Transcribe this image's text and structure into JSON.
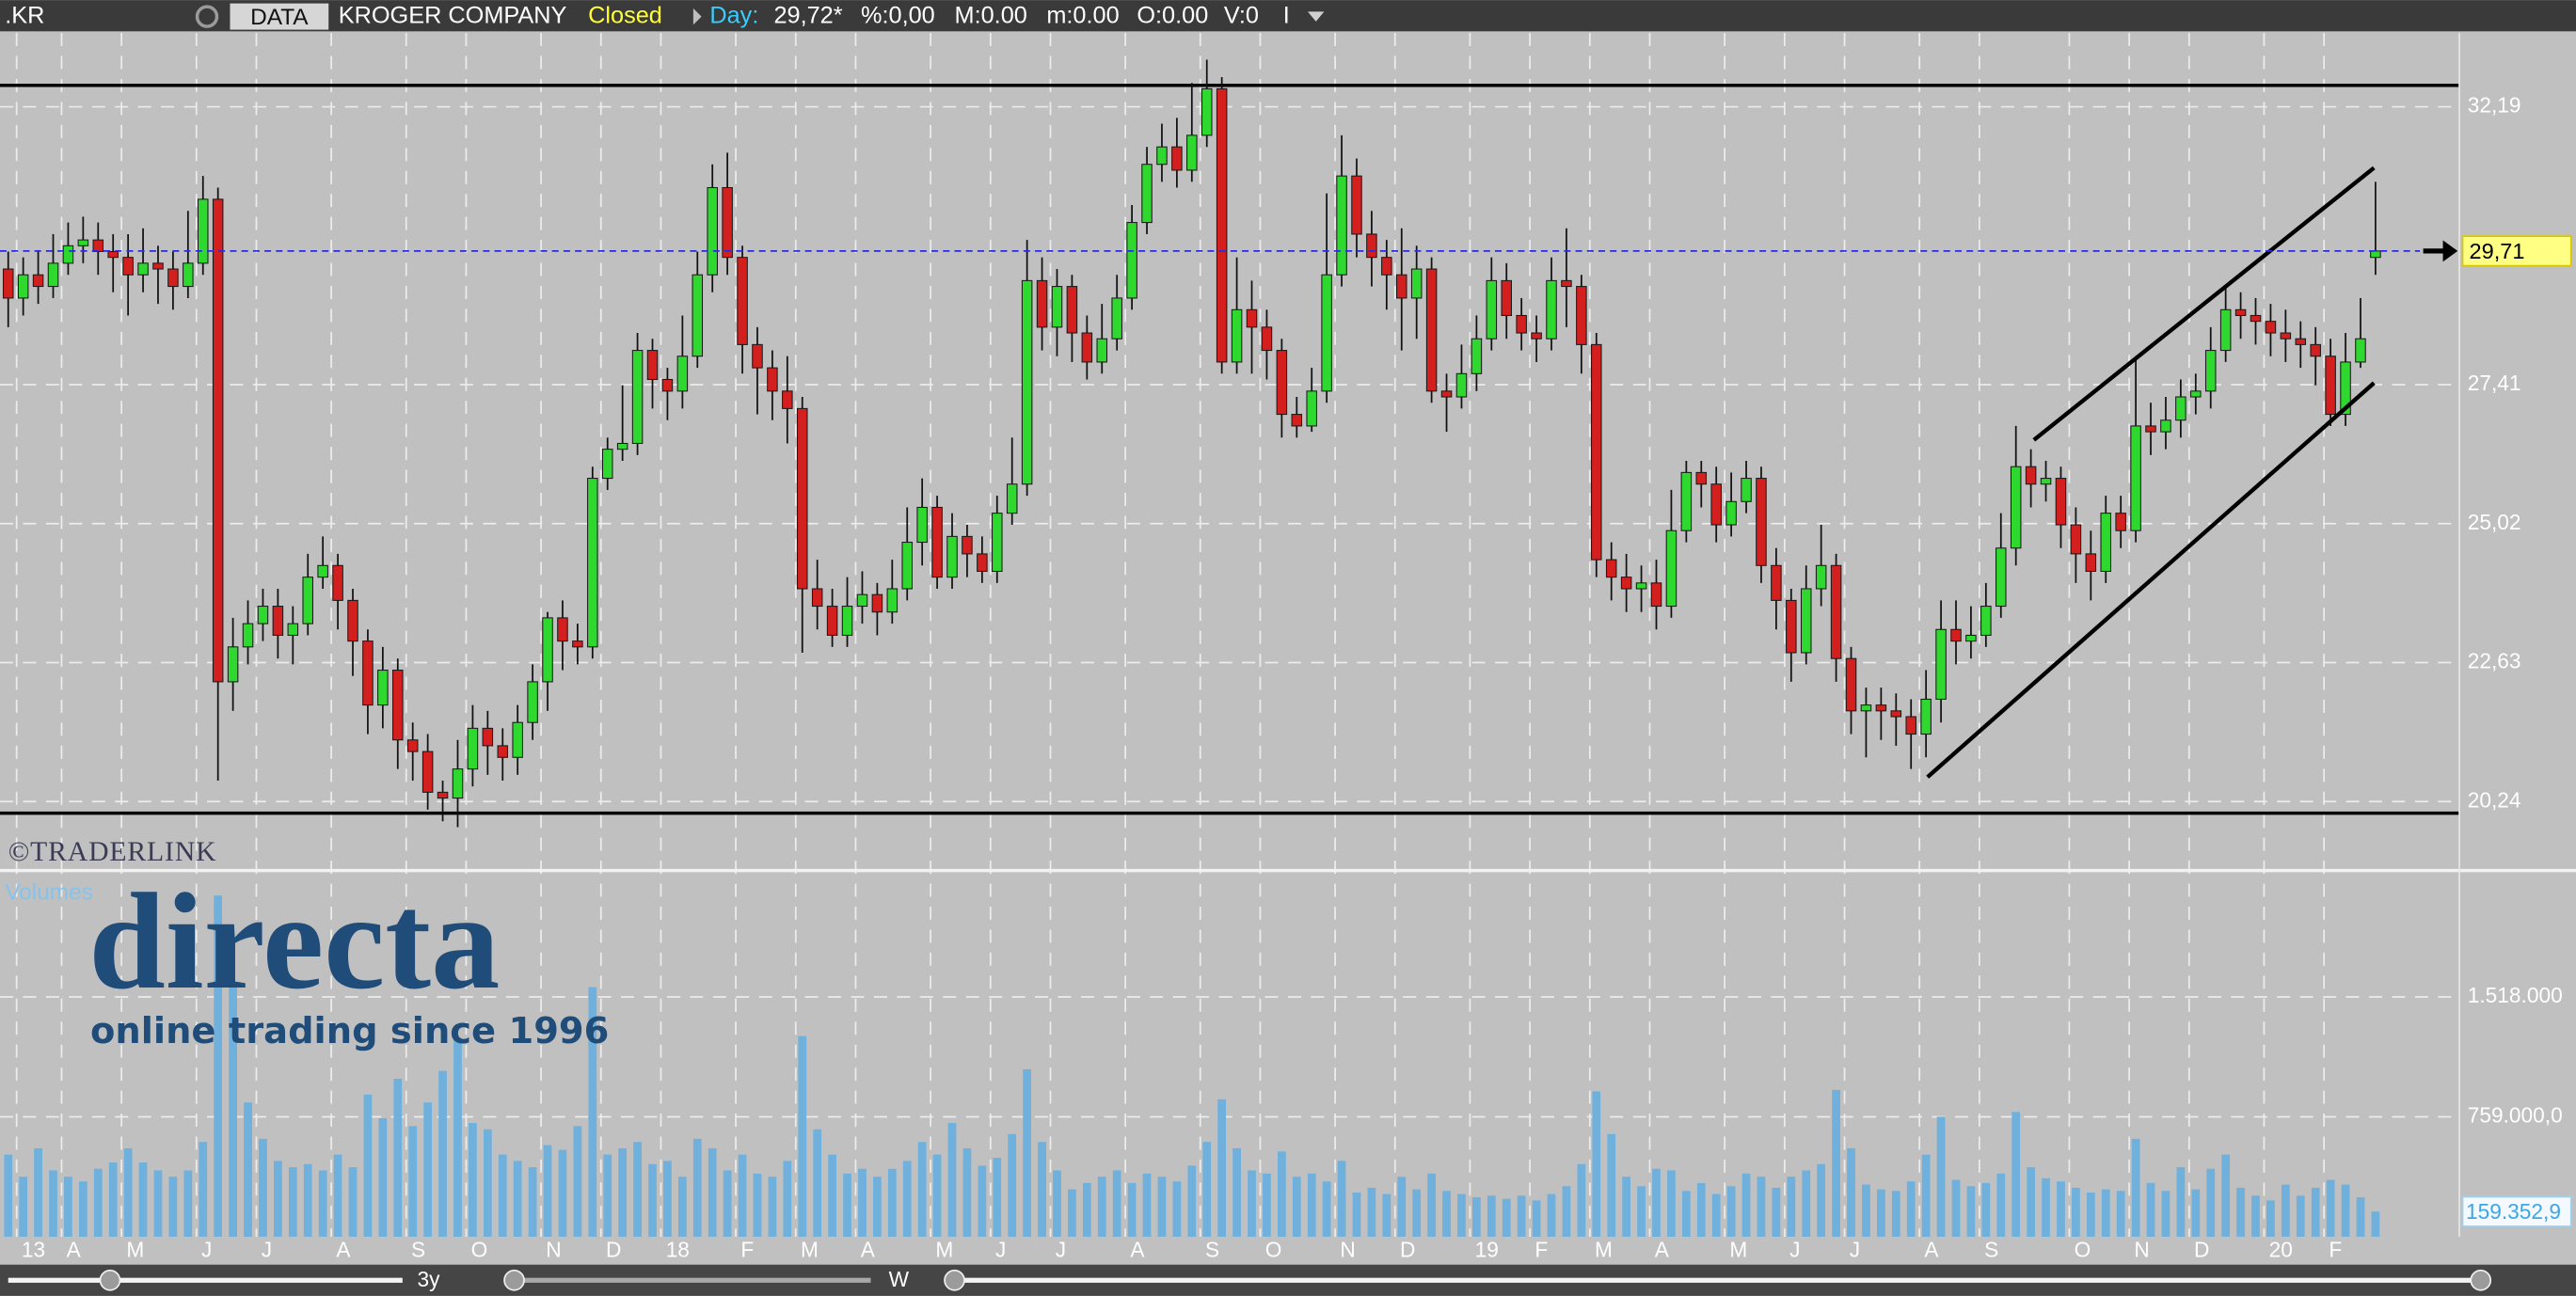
{
  "header": {
    "symbol": ".KR",
    "data_button": "DATA",
    "company": "KROGER COMPANY",
    "status": "Closed",
    "day_label": "Day:",
    "day_value": "29,72*",
    "change": "%:0,00",
    "max": "M:0.00",
    "min": "m:0.00",
    "open": "O:0.00",
    "volume": "V:0",
    "interval": "I"
  },
  "watermark": {
    "provider": "©TRADERLINK",
    "brand": "directa",
    "tagline": "online trading since 1996"
  },
  "footer": {
    "range": "3y",
    "period": "W"
  },
  "chart_data": [
    {
      "type": "candlestick",
      "categories": [
        null,
        "13",
        null,
        null,
        "A",
        null,
        null,
        null,
        "M",
        null,
        null,
        null,
        null,
        "J",
        null,
        null,
        null,
        "J",
        null,
        null,
        null,
        null,
        "A",
        null,
        null,
        null,
        null,
        "S",
        null,
        null,
        null,
        "O",
        null,
        null,
        null,
        null,
        "N",
        null,
        null,
        null,
        "D",
        null,
        null,
        null,
        "18",
        null,
        null,
        null,
        null,
        "F",
        null,
        null,
        null,
        "M",
        null,
        null,
        null,
        "A",
        null,
        null,
        null,
        null,
        "M",
        null,
        null,
        null,
        "J",
        null,
        null,
        null,
        "J",
        null,
        null,
        null,
        null,
        "A",
        null,
        null,
        null,
        null,
        "S",
        null,
        null,
        null,
        "O",
        null,
        null,
        null,
        null,
        "N",
        null,
        null,
        null,
        "D",
        null,
        null,
        null,
        null,
        "19",
        null,
        null,
        null,
        "F",
        null,
        null,
        null,
        "M",
        null,
        null,
        null,
        "A",
        null,
        null,
        null,
        null,
        "M",
        null,
        null,
        null,
        "J",
        null,
        null,
        null,
        "J",
        null,
        null,
        null,
        null,
        "A",
        null,
        null,
        null,
        "S",
        null,
        null,
        null,
        null,
        null,
        "O",
        null,
        null,
        null,
        "N",
        null,
        null,
        null,
        "D",
        null,
        null,
        null,
        null,
        "20",
        null,
        null,
        null,
        "F",
        null,
        null,
        null
      ],
      "open": [
        29.4,
        28.9,
        29.3,
        29.1,
        29.5,
        29.8,
        29.9,
        29.7,
        29.6,
        29.3,
        29.5,
        29.4,
        29.1,
        29.5,
        30.6,
        22.3,
        22.9,
        23.3,
        23.6,
        23.1,
        23.3,
        24.1,
        24.3,
        23.7,
        23.0,
        21.9,
        22.5,
        21.3,
        21.1,
        20.4,
        20.3,
        20.8,
        21.5,
        21.2,
        21.0,
        21.6,
        22.3,
        23.4,
        23.0,
        22.9,
        25.8,
        26.3,
        26.4,
        28.0,
        27.5,
        27.3,
        27.9,
        29.3,
        30.8,
        29.6,
        28.1,
        27.7,
        27.3,
        27.0,
        23.9,
        23.6,
        23.1,
        23.6,
        23.8,
        23.5,
        23.9,
        24.7,
        25.3,
        24.1,
        24.8,
        24.5,
        24.2,
        25.2,
        25.7,
        29.2,
        28.4,
        29.1,
        28.3,
        27.8,
        28.2,
        28.9,
        30.2,
        31.2,
        31.5,
        31.1,
        31.7,
        32.5,
        27.8,
        28.7,
        28.4,
        28.0,
        26.9,
        26.7,
        27.3,
        29.3,
        31.0,
        30.0,
        29.6,
        29.3,
        28.9,
        29.4,
        27.3,
        27.2,
        27.6,
        28.2,
        29.2,
        28.6,
        28.3,
        28.2,
        29.2,
        29.1,
        28.1,
        24.4,
        24.1,
        23.9,
        24.0,
        23.6,
        24.9,
        25.9,
        25.7,
        25.0,
        25.4,
        25.8,
        24.3,
        23.7,
        22.8,
        23.9,
        24.3,
        22.7,
        21.8,
        21.9,
        21.8,
        21.7,
        21.4,
        22.0,
        23.2,
        23.0,
        23.1,
        23.6,
        24.6,
        26.0,
        25.7,
        25.8,
        25.0,
        24.5,
        24.2,
        25.2,
        24.9,
        26.7,
        26.6,
        26.8,
        27.2,
        27.3,
        28.0,
        28.7,
        28.6,
        28.5,
        28.3,
        28.2,
        28.1,
        27.9,
        26.9,
        27.8,
        29.6
      ],
      "high": [
        29.7,
        29.6,
        29.7,
        30.0,
        30.2,
        30.3,
        30.2,
        30.0,
        30.0,
        30.1,
        29.8,
        29.7,
        30.4,
        31.0,
        30.8,
        23.4,
        23.7,
        23.9,
        23.9,
        23.6,
        24.5,
        24.8,
        24.5,
        23.9,
        23.2,
        22.9,
        22.7,
        21.6,
        21.4,
        20.6,
        21.3,
        21.9,
        21.8,
        21.5,
        21.9,
        22.6,
        23.5,
        23.7,
        23.3,
        26.0,
        26.5,
        27.4,
        28.3,
        28.2,
        27.7,
        28.6,
        29.7,
        31.2,
        31.4,
        29.8,
        28.4,
        28.0,
        27.9,
        27.2,
        24.4,
        23.9,
        24.1,
        24.2,
        24.0,
        24.4,
        25.3,
        25.8,
        25.5,
        25.2,
        25.0,
        24.8,
        25.5,
        26.5,
        29.9,
        29.6,
        29.4,
        29.3,
        28.6,
        28.8,
        29.3,
        30.5,
        31.5,
        31.9,
        32.0,
        32.6,
        33.0,
        32.7,
        29.6,
        29.2,
        28.7,
        28.2,
        27.2,
        27.7,
        30.7,
        31.7,
        31.3,
        30.4,
        29.9,
        30.1,
        29.8,
        29.6,
        27.6,
        28.1,
        28.6,
        29.6,
        29.5,
        28.9,
        28.6,
        29.6,
        30.1,
        29.3,
        28.3,
        24.7,
        24.5,
        24.3,
        24.4,
        25.6,
        26.1,
        26.1,
        26.0,
        25.9,
        26.1,
        26.0,
        24.6,
        23.9,
        24.3,
        25.0,
        24.5,
        22.9,
        22.2,
        22.2,
        22.1,
        22.0,
        22.5,
        23.7,
        23.7,
        23.6,
        24.0,
        25.2,
        26.7,
        26.3,
        26.1,
        26.0,
        25.3,
        24.9,
        25.5,
        25.5,
        27.9,
        27.1,
        27.2,
        27.5,
        27.6,
        28.4,
        29.1,
        29.0,
        28.9,
        28.8,
        28.7,
        28.5,
        28.4,
        28.2,
        28.3,
        28.9,
        30.9
      ],
      "low": [
        28.4,
        28.6,
        28.8,
        28.9,
        29.3,
        29.5,
        29.3,
        29.0,
        28.6,
        29.0,
        28.8,
        28.7,
        28.9,
        29.3,
        20.6,
        21.8,
        22.6,
        23.0,
        22.7,
        22.6,
        23.1,
        23.9,
        23.2,
        22.4,
        21.4,
        21.5,
        20.8,
        20.6,
        20.1,
        19.9,
        19.8,
        20.5,
        20.7,
        20.6,
        20.7,
        21.3,
        21.8,
        22.5,
        22.6,
        22.7,
        25.6,
        26.1,
        26.2,
        27.0,
        26.8,
        27.0,
        27.7,
        29.0,
        29.3,
        27.6,
        26.9,
        26.8,
        26.4,
        22.8,
        23.2,
        22.9,
        22.9,
        23.3,
        23.1,
        23.3,
        23.7,
        24.3,
        23.9,
        23.9,
        24.1,
        24.0,
        24.0,
        25.0,
        25.5,
        28.0,
        27.9,
        27.8,
        27.5,
        27.6,
        28.0,
        28.7,
        30.0,
        30.9,
        30.8,
        30.9,
        31.5,
        27.6,
        27.6,
        27.6,
        27.5,
        26.5,
        26.5,
        26.6,
        27.1,
        29.1,
        29.6,
        29.1,
        28.7,
        28.0,
        28.2,
        27.1,
        26.6,
        27.0,
        27.3,
        28.0,
        28.2,
        28.0,
        27.8,
        28.0,
        28.4,
        27.6,
        24.1,
        23.7,
        23.5,
        23.5,
        23.2,
        23.4,
        24.7,
        25.3,
        24.7,
        24.8,
        25.2,
        24.0,
        23.2,
        22.3,
        22.6,
        23.6,
        22.3,
        21.4,
        21.0,
        21.3,
        21.2,
        20.8,
        21.0,
        21.6,
        22.6,
        22.7,
        22.9,
        23.4,
        24.3,
        25.3,
        25.4,
        24.6,
        24.0,
        23.7,
        24.0,
        24.6,
        24.7,
        26.2,
        26.3,
        26.5,
        26.9,
        27.0,
        27.8,
        28.2,
        28.1,
        27.9,
        27.8,
        27.7,
        27.4,
        26.7,
        26.7,
        27.7,
        29.3
      ],
      "close": [
        28.9,
        29.3,
        29.1,
        29.5,
        29.8,
        29.9,
        29.7,
        29.6,
        29.3,
        29.5,
        29.4,
        29.1,
        29.5,
        30.6,
        22.3,
        22.9,
        23.3,
        23.6,
        23.1,
        23.3,
        24.1,
        24.3,
        23.7,
        23.0,
        21.9,
        22.5,
        21.3,
        21.1,
        20.4,
        20.3,
        20.8,
        21.5,
        21.2,
        21.0,
        21.6,
        22.3,
        23.4,
        23.0,
        22.9,
        25.8,
        26.3,
        26.4,
        28.0,
        27.5,
        27.3,
        27.9,
        29.3,
        30.8,
        29.6,
        28.1,
        27.7,
        27.3,
        27.0,
        23.9,
        23.6,
        23.1,
        23.6,
        23.8,
        23.5,
        23.9,
        24.7,
        25.3,
        24.1,
        24.8,
        24.5,
        24.2,
        25.2,
        25.7,
        29.2,
        28.4,
        29.1,
        28.3,
        27.8,
        28.2,
        28.9,
        30.2,
        31.2,
        31.5,
        31.1,
        31.7,
        32.5,
        27.8,
        28.7,
        28.4,
        28.0,
        26.9,
        26.7,
        27.3,
        29.3,
        31.0,
        30.0,
        29.6,
        29.3,
        28.9,
        29.4,
        27.3,
        27.2,
        27.6,
        28.2,
        29.2,
        28.6,
        28.3,
        28.2,
        29.2,
        29.1,
        28.1,
        24.4,
        24.1,
        23.9,
        24.0,
        23.6,
        24.9,
        25.9,
        25.7,
        25.0,
        25.4,
        25.8,
        24.3,
        23.7,
        22.8,
        23.9,
        24.3,
        22.7,
        21.8,
        21.9,
        21.8,
        21.7,
        21.4,
        22.0,
        23.2,
        23.0,
        23.1,
        23.6,
        24.6,
        26.0,
        25.7,
        25.8,
        25.0,
        24.5,
        24.2,
        25.2,
        24.9,
        26.7,
        26.6,
        26.8,
        27.2,
        27.3,
        28.0,
        28.7,
        28.6,
        28.5,
        28.3,
        28.2,
        28.1,
        27.9,
        26.9,
        27.8,
        28.2,
        29.71
      ],
      "last_label": "29,71",
      "up_color": "#2ed82e",
      "down_color": "#d41f1f",
      "last_line_color": "#2a2ae0",
      "ylim": [
        19.11,
        33.46
      ],
      "yticks": [
        {
          "value": 32.19,
          "label": "32,19"
        },
        {
          "value": 27.41,
          "label": "27,41"
        },
        {
          "value": 25.02,
          "label": "25,02"
        },
        {
          "value": 22.63,
          "label": "22,63"
        },
        {
          "value": 20.24,
          "label": "20,24"
        }
      ],
      "grid": true,
      "reference_lines": [
        32.56,
        20.04
      ],
      "trendlines": [
        {
          "x": [
            135.2,
            157.9
          ],
          "y": [
            26.46,
            31.14
          ]
        },
        {
          "x": [
            128.1,
            157.9
          ],
          "y": [
            20.66,
            27.44
          ]
        }
      ]
    },
    {
      "type": "bar",
      "title": "Volumes",
      "color": "#6fb0dc",
      "values": [
        520000,
        380000,
        560000,
        420000,
        380000,
        350000,
        430000,
        470000,
        560000,
        470000,
        420000,
        380000,
        420000,
        600000,
        2160000,
        1590000,
        850000,
        620000,
        480000,
        440000,
        460000,
        420000,
        520000,
        440000,
        900000,
        750000,
        1000000,
        700000,
        850000,
        1050000,
        1260000,
        720000,
        680000,
        520000,
        480000,
        440000,
        580000,
        550000,
        700000,
        1580000,
        520000,
        560000,
        600000,
        460000,
        480000,
        380000,
        620000,
        560000,
        420000,
        520000,
        400000,
        380000,
        480000,
        1270000,
        680000,
        520000,
        400000,
        430000,
        380000,
        430000,
        480000,
        600000,
        520000,
        720000,
        560000,
        450000,
        500000,
        650000,
        1060000,
        600000,
        420000,
        300000,
        340000,
        380000,
        420000,
        340000,
        400000,
        380000,
        350000,
        450000,
        600000,
        870000,
        560000,
        420000,
        400000,
        540000,
        380000,
        400000,
        350000,
        480000,
        280000,
        310000,
        270000,
        380000,
        300000,
        400000,
        290000,
        270000,
        250000,
        260000,
        240000,
        260000,
        230000,
        270000,
        320000,
        460000,
        920000,
        650000,
        380000,
        320000,
        430000,
        420000,
        290000,
        340000,
        270000,
        320000,
        400000,
        380000,
        310000,
        380000,
        420000,
        460000,
        930000,
        560000,
        330000,
        300000,
        290000,
        350000,
        520000,
        760000,
        360000,
        320000,
        340000,
        400000,
        790000,
        440000,
        370000,
        350000,
        310000,
        280000,
        300000,
        290000,
        620000,
        340000,
        290000,
        440000,
        300000,
        430000,
        520000,
        310000,
        260000,
        230000,
        330000,
        260000,
        310000,
        360000,
        330000,
        250000,
        159352.9
      ],
      "last_label": "159.352,9",
      "ylim": [
        0,
        2287000
      ],
      "yticks": [
        {
          "value": 1518000,
          "label": "1.518.000"
        },
        {
          "value": 759000,
          "label": "759.000,0"
        }
      ],
      "grid": true
    }
  ]
}
